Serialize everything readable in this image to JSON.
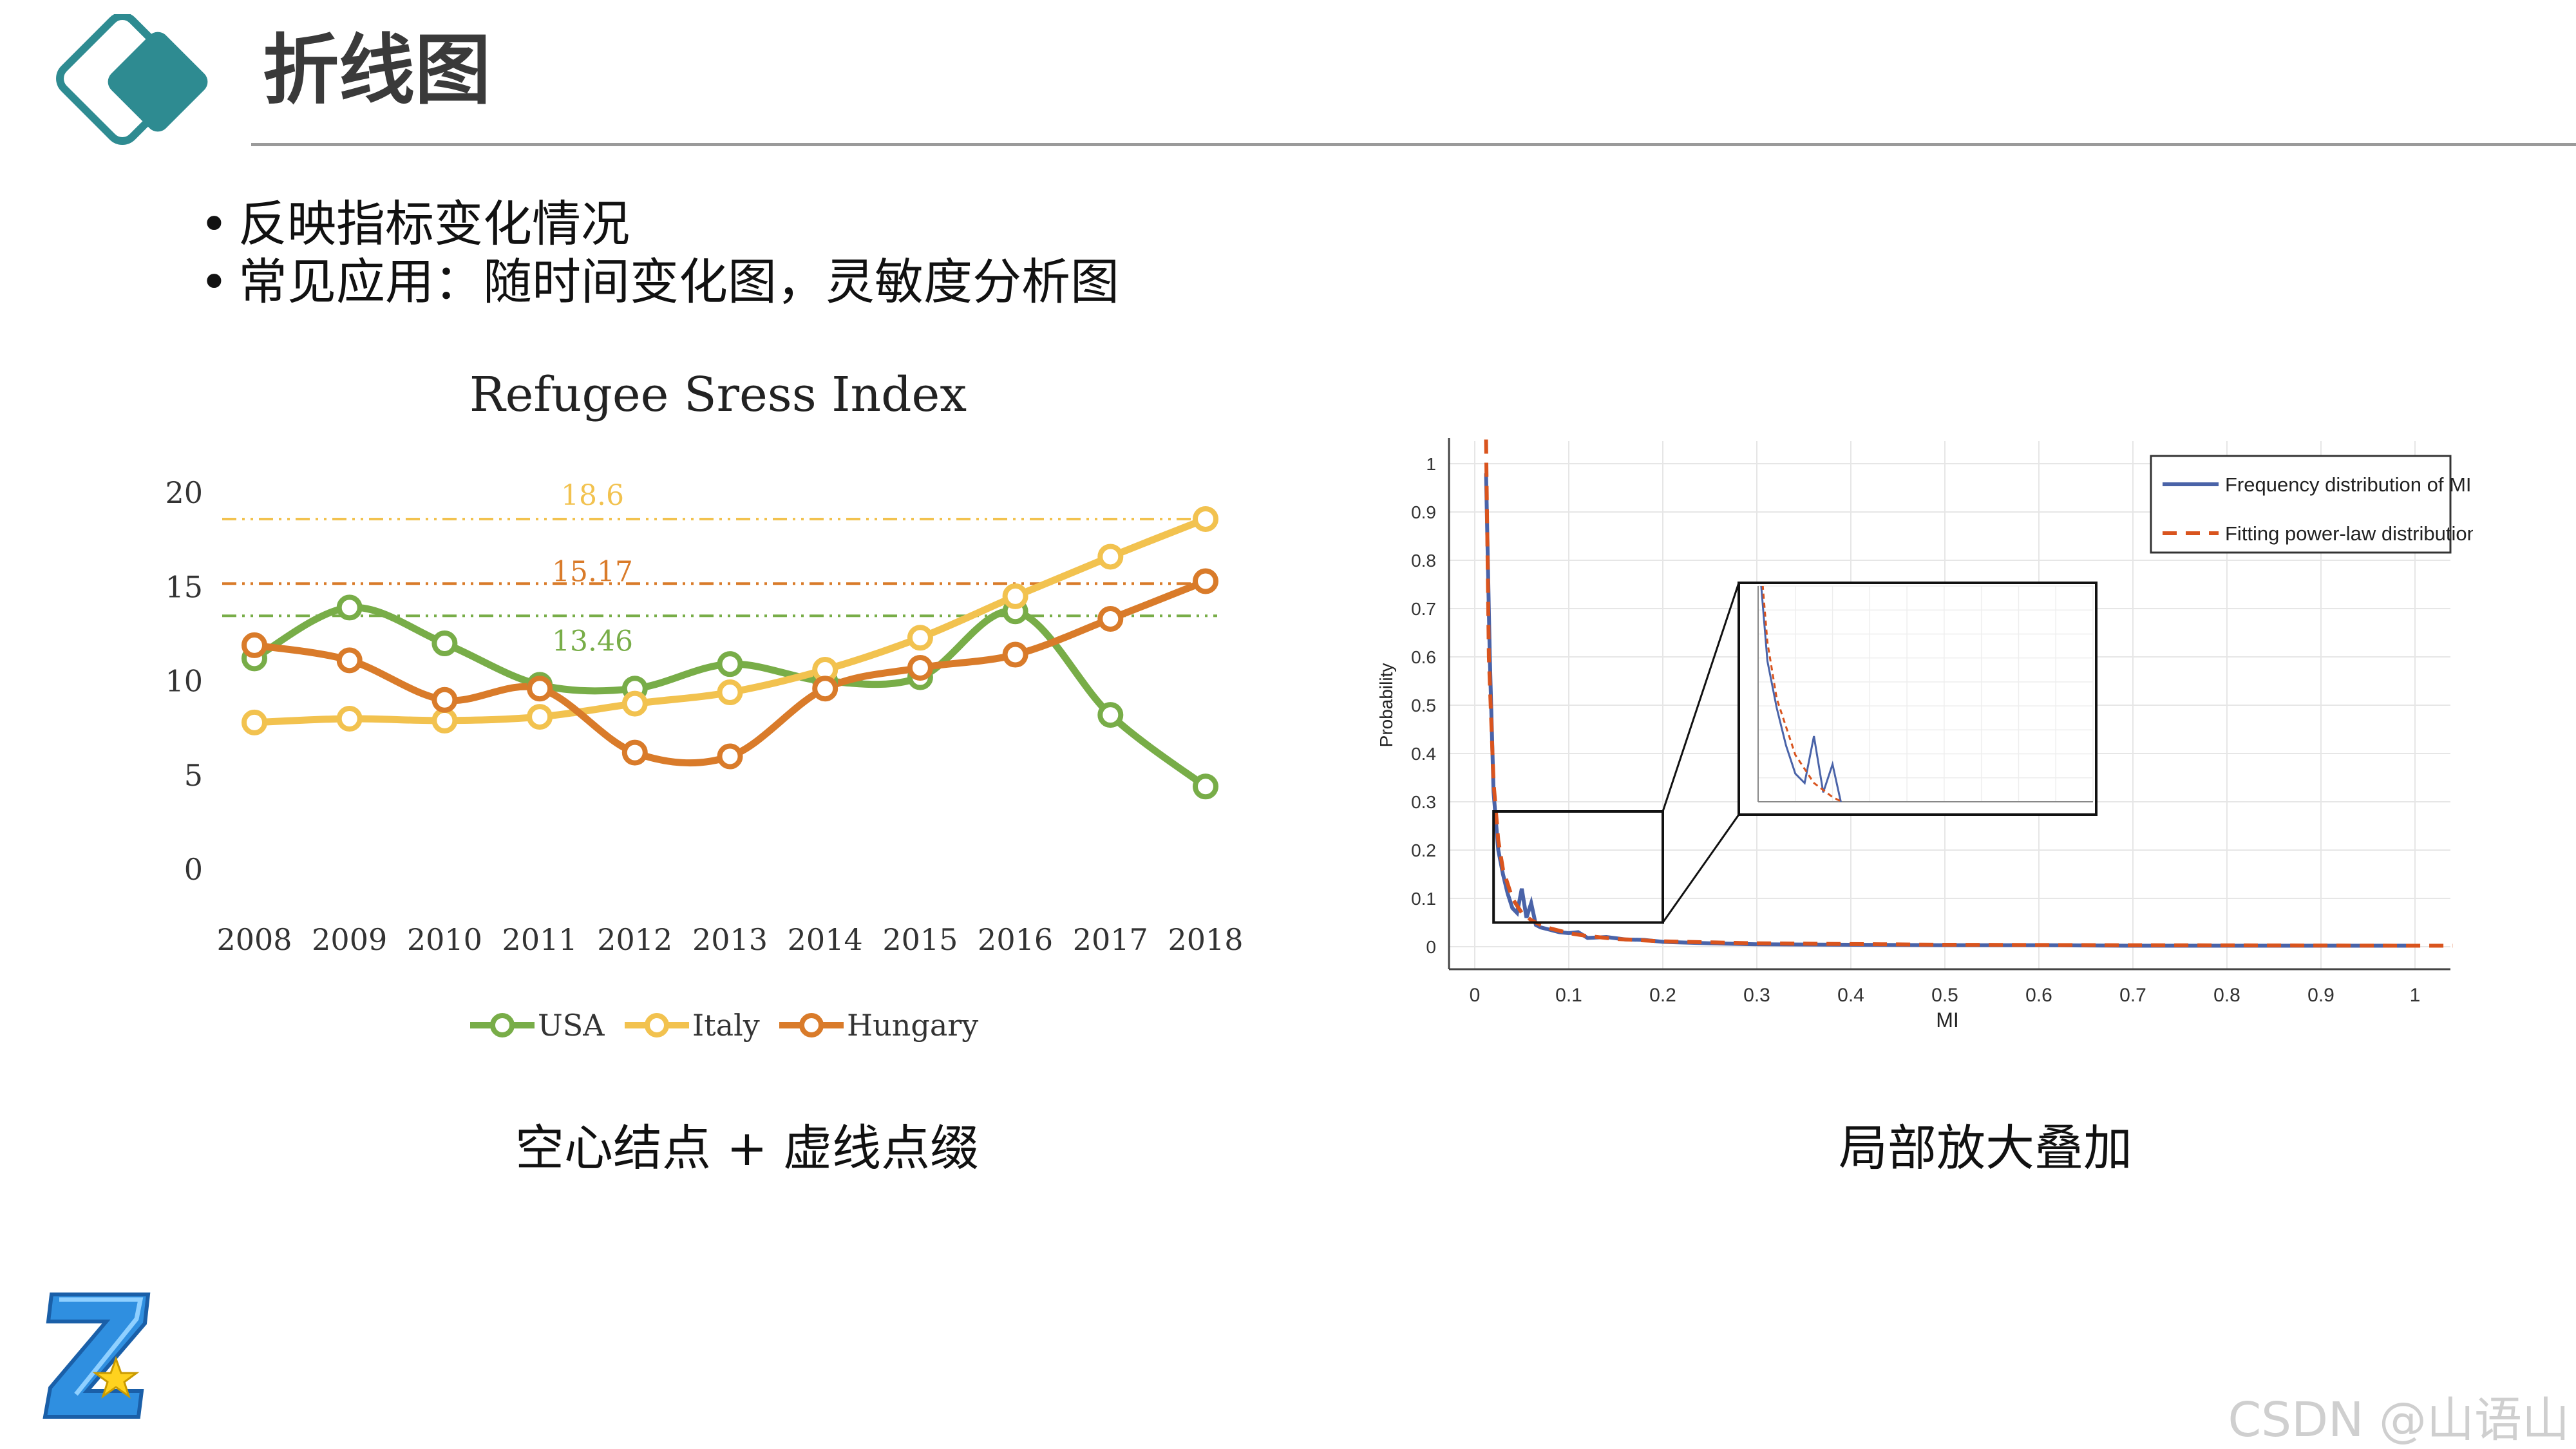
{
  "slide": {
    "title": "折线图",
    "bullets": [
      "反映指标变化情况",
      "常见应用：随时间变化图，灵敏度分析图"
    ],
    "caption_left": "空心结点 + 虚线点缀",
    "caption_right": "局部放大叠加",
    "watermark": "CSDN @山语山",
    "header_icon": "diamond-logo-icon",
    "footer_icon": "z-star-logo-icon"
  },
  "chart_data": [
    {
      "type": "line",
      "title": "Refugee Sress Index",
      "categories": [
        "2008",
        "2009",
        "2010",
        "2011",
        "2012",
        "2013",
        "2014",
        "2015",
        "2016",
        "2017",
        "2018"
      ],
      "ylim": [
        0,
        20
      ],
      "yticks": [
        "0",
        "5",
        "10",
        "15",
        "20"
      ],
      "series": [
        {
          "name": "USA",
          "color": "#78ad48",
          "values": [
            11.2,
            13.9,
            12.0,
            9.8,
            9.6,
            10.9,
            10.0,
            10.2,
            13.7,
            8.2,
            4.4
          ]
        },
        {
          "name": "Italy",
          "color": "#f2c24f",
          "values": [
            7.8,
            8.0,
            7.9,
            8.1,
            8.8,
            9.4,
            10.6,
            12.3,
            14.5,
            16.6,
            18.6
          ]
        },
        {
          "name": "Hungary",
          "color": "#d97b2a",
          "values": [
            11.9,
            11.1,
            9.0,
            9.6,
            6.2,
            6.0,
            9.6,
            10.7,
            11.4,
            13.3,
            15.3
          ]
        }
      ],
      "reference_lines": [
        {
          "value": 18.6,
          "label": "18.6",
          "color": "#f2c24f"
        },
        {
          "value": 15.17,
          "label": "15.17",
          "color": "#d97b2a"
        },
        {
          "value": 13.46,
          "label": "13.46",
          "color": "#78ad48"
        }
      ],
      "legend": "bottom",
      "marker": "hollow-circle",
      "grid": false
    },
    {
      "type": "line",
      "xlabel": "MI",
      "ylabel": "Probability",
      "xlim": [
        0,
        1
      ],
      "ylim": [
        0,
        1
      ],
      "xticks": [
        "0",
        "0.1",
        "0.2",
        "0.3",
        "0.4",
        "0.5",
        "0.6",
        "0.7",
        "0.8",
        "0.9",
        "1"
      ],
      "yticks": [
        "0",
        "0.1",
        "0.2",
        "0.3",
        "0.4",
        "0.5",
        "0.6",
        "0.7",
        "0.8",
        "0.9",
        "1"
      ],
      "grid": true,
      "legend": "top-right",
      "series": [
        {
          "name": "Frequency distribution of MI",
          "color": "#4a63a8",
          "style": "solid",
          "x": [
            0.012,
            0.016,
            0.02,
            0.025,
            0.03,
            0.035,
            0.04,
            0.045,
            0.05,
            0.055,
            0.06,
            0.065,
            0.07,
            0.08,
            0.09,
            0.1,
            0.11,
            0.12,
            0.14,
            0.16,
            0.18,
            0.2,
            0.25,
            0.3,
            0.4,
            0.5,
            0.6,
            0.7,
            0.8,
            0.9,
            1.0
          ],
          "y": [
            0.98,
            0.6,
            0.32,
            0.2,
            0.15,
            0.11,
            0.08,
            0.07,
            0.12,
            0.06,
            0.09,
            0.045,
            0.04,
            0.035,
            0.03,
            0.028,
            0.03,
            0.018,
            0.02,
            0.015,
            0.014,
            0.01,
            0.007,
            0.005,
            0.004,
            0.003,
            0.003,
            0.002,
            0.002,
            0.002,
            0.002
          ]
        },
        {
          "name": "Fitting power-law distribution",
          "color": "#d9541e",
          "style": "dashed",
          "x": [
            0.012,
            0.015,
            0.02,
            0.025,
            0.03,
            0.04,
            0.05,
            0.06,
            0.07,
            0.08,
            0.1,
            0.12,
            0.15,
            0.2,
            0.3,
            0.5,
            0.7,
            1.0,
            1.04
          ],
          "y": [
            1.05,
            0.6,
            0.34,
            0.22,
            0.16,
            0.1,
            0.07,
            0.055,
            0.045,
            0.038,
            0.028,
            0.022,
            0.016,
            0.011,
            0.007,
            0.004,
            0.003,
            0.002,
            0.002
          ]
        }
      ],
      "inset": {
        "zoom_xlim": [
          0.02,
          0.2
        ],
        "zoom_ylim": [
          0.05,
          0.28
        ]
      }
    }
  ]
}
